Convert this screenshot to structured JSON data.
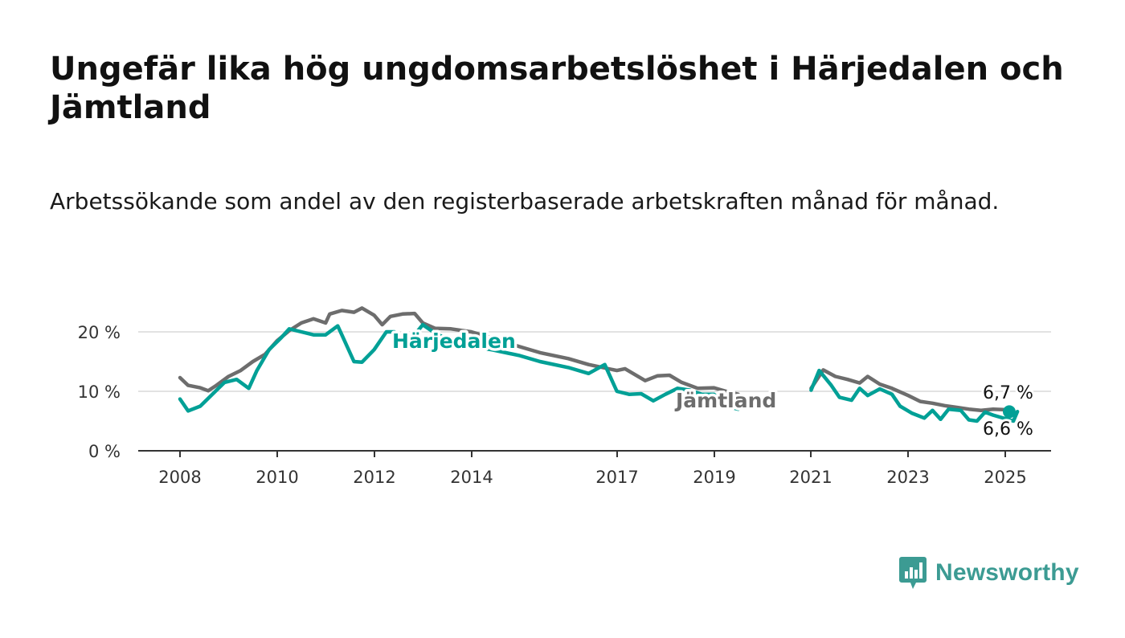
{
  "title": "Ungefär lika hög ungdomsarbetslöshet i Härjedalen och Jämtland",
  "subtitle": "Arbetssökande som andel av den registerbaserade arbetskraften månad för månad.",
  "brand": {
    "name": "Newsworthy",
    "color": "#3c9b93",
    "icon": "newsworthy-logo-icon"
  },
  "chart_data": {
    "type": "line",
    "x_type": "date",
    "xlim": [
      "2007-09",
      "2025-07"
    ],
    "ylim": [
      0,
      26
    ],
    "y_ticks": [
      0,
      10,
      20
    ],
    "y_tick_labels": [
      "0 %",
      "10 %",
      "20 %"
    ],
    "x_ticks": [
      "2008",
      "2010",
      "2012",
      "2014",
      "2017",
      "2019",
      "2021",
      "2023",
      "2025"
    ],
    "grid": "horizontal",
    "legend": "inline labels",
    "series": [
      {
        "name": "Jämtland",
        "color": "#6d6d6d",
        "segments": [
          [
            [
              "2008-01",
              12.3
            ],
            [
              "2008-03",
              11.0
            ],
            [
              "2008-06",
              10.6
            ],
            [
              "2008-08",
              10.1
            ],
            [
              "2008-10",
              11.0
            ],
            [
              "2009-01",
              12.5
            ],
            [
              "2009-04",
              13.5
            ],
            [
              "2009-07",
              15.0
            ],
            [
              "2009-10",
              16.2
            ],
            [
              "2010-01",
              18.5
            ],
            [
              "2010-04",
              20.2
            ],
            [
              "2010-07",
              21.5
            ],
            [
              "2010-10",
              22.2
            ],
            [
              "2011-01",
              21.5
            ],
            [
              "2011-02",
              23.0
            ],
            [
              "2011-05",
              23.6
            ],
            [
              "2011-08",
              23.3
            ],
            [
              "2011-10",
              24.0
            ],
            [
              "2012-01",
              22.8
            ],
            [
              "2012-03",
              21.2
            ],
            [
              "2012-05",
              22.6
            ],
            [
              "2012-08",
              23.0
            ],
            [
              "2012-11",
              23.1
            ],
            [
              "2013-01",
              21.5
            ],
            [
              "2013-04",
              20.6
            ],
            [
              "2013-08",
              20.5
            ],
            [
              "2014-01",
              20.0
            ],
            [
              "2014-06",
              19.0
            ],
            [
              "2015-01",
              17.5
            ],
            [
              "2015-06",
              16.5
            ],
            [
              "2016-01",
              15.5
            ],
            [
              "2016-06",
              14.5
            ],
            [
              "2017-01",
              13.5
            ],
            [
              "2017-03",
              13.8
            ],
            [
              "2017-05",
              13.0
            ],
            [
              "2017-08",
              11.8
            ],
            [
              "2017-11",
              12.6
            ],
            [
              "2018-02",
              12.7
            ],
            [
              "2018-05",
              11.5
            ],
            [
              "2018-09",
              10.5
            ],
            [
              "2019-01",
              10.6
            ],
            [
              "2019-04",
              10.0
            ],
            [
              "2019-07",
              9.5
            ]
          ],
          [
            [
              "2021-01",
              10.5
            ],
            [
              "2021-04",
              13.6
            ],
            [
              "2021-07",
              12.5
            ],
            [
              "2021-10",
              12.0
            ],
            [
              "2022-01",
              11.4
            ],
            [
              "2022-03",
              12.5
            ],
            [
              "2022-06",
              11.2
            ],
            [
              "2022-09",
              10.5
            ],
            [
              "2023-01",
              9.3
            ],
            [
              "2023-04",
              8.3
            ],
            [
              "2023-07",
              8.0
            ],
            [
              "2023-10",
              7.6
            ],
            [
              "2024-01",
              7.3
            ],
            [
              "2024-04",
              7.0
            ],
            [
              "2024-07",
              6.8
            ],
            [
              "2024-10",
              7.0
            ],
            [
              "2025-01",
              6.9
            ],
            [
              "2025-03",
              6.7
            ]
          ]
        ]
      },
      {
        "name": "Härjedalen",
        "color": "#00a096",
        "segments": [
          [
            [
              "2008-01",
              8.7
            ],
            [
              "2008-03",
              6.7
            ],
            [
              "2008-06",
              7.5
            ],
            [
              "2008-09",
              9.5
            ],
            [
              "2008-12",
              11.5
            ],
            [
              "2009-03",
              12.0
            ],
            [
              "2009-06",
              10.5
            ],
            [
              "2009-08",
              13.5
            ],
            [
              "2009-11",
              17.0
            ],
            [
              "2010-02",
              19.0
            ],
            [
              "2010-04",
              20.5
            ],
            [
              "2010-07",
              20.0
            ],
            [
              "2010-10",
              19.5
            ],
            [
              "2011-01",
              19.5
            ],
            [
              "2011-04",
              21.0
            ],
            [
              "2011-05",
              19.5
            ],
            [
              "2011-08",
              15.0
            ],
            [
              "2011-10",
              14.9
            ],
            [
              "2012-01",
              17.0
            ],
            [
              "2012-04",
              20.0
            ],
            [
              "2012-06",
              20.0
            ],
            [
              "2012-08",
              18.8
            ],
            [
              "2012-11",
              19.5
            ],
            [
              "2013-01",
              21.2
            ],
            [
              "2013-04",
              19.8
            ],
            [
              "2013-08",
              18.5
            ],
            [
              "2014-01",
              17.5
            ],
            [
              "2014-06",
              17.0
            ],
            [
              "2015-01",
              16.0
            ],
            [
              "2015-06",
              15.0
            ],
            [
              "2016-01",
              14.0
            ],
            [
              "2016-06",
              13.0
            ],
            [
              "2016-10",
              14.5
            ],
            [
              "2017-01",
              10.0
            ],
            [
              "2017-04",
              9.5
            ],
            [
              "2017-07",
              9.6
            ],
            [
              "2017-10",
              8.4
            ],
            [
              "2018-01",
              9.5
            ],
            [
              "2018-04",
              10.5
            ],
            [
              "2018-07",
              10.2
            ],
            [
              "2018-10",
              9.5
            ],
            [
              "2019-01",
              9.5
            ],
            [
              "2019-04",
              7.5
            ],
            [
              "2019-07",
              7.0
            ]
          ],
          [
            [
              "2021-01",
              10.2
            ],
            [
              "2021-03",
              13.5
            ],
            [
              "2021-06",
              11.0
            ],
            [
              "2021-08",
              9.0
            ],
            [
              "2021-11",
              8.5
            ],
            [
              "2022-01",
              10.5
            ],
            [
              "2022-03",
              9.3
            ],
            [
              "2022-06",
              10.4
            ],
            [
              "2022-09",
              9.5
            ],
            [
              "2022-11",
              7.5
            ],
            [
              "2023-02",
              6.3
            ],
            [
              "2023-05",
              5.5
            ],
            [
              "2023-07",
              6.8
            ],
            [
              "2023-09",
              5.3
            ],
            [
              "2023-11",
              7.0
            ],
            [
              "2024-02",
              6.8
            ],
            [
              "2024-04",
              5.2
            ],
            [
              "2024-06",
              5.0
            ],
            [
              "2024-08",
              6.5
            ],
            [
              "2024-10",
              6.0
            ],
            [
              "2025-01",
              5.4
            ],
            [
              "2025-03",
              5.0
            ],
            [
              "2025-04",
              6.6
            ]
          ]
        ]
      }
    ],
    "labels": {
      "jamtland": "Jämtland",
      "harjedalen": "Härjedalen",
      "jamtland_last": "6,7 %",
      "harjedalen_last": "6,6 %"
    },
    "last_values": {
      "jamtland": 6.7,
      "harjedalen": 6.6
    }
  }
}
